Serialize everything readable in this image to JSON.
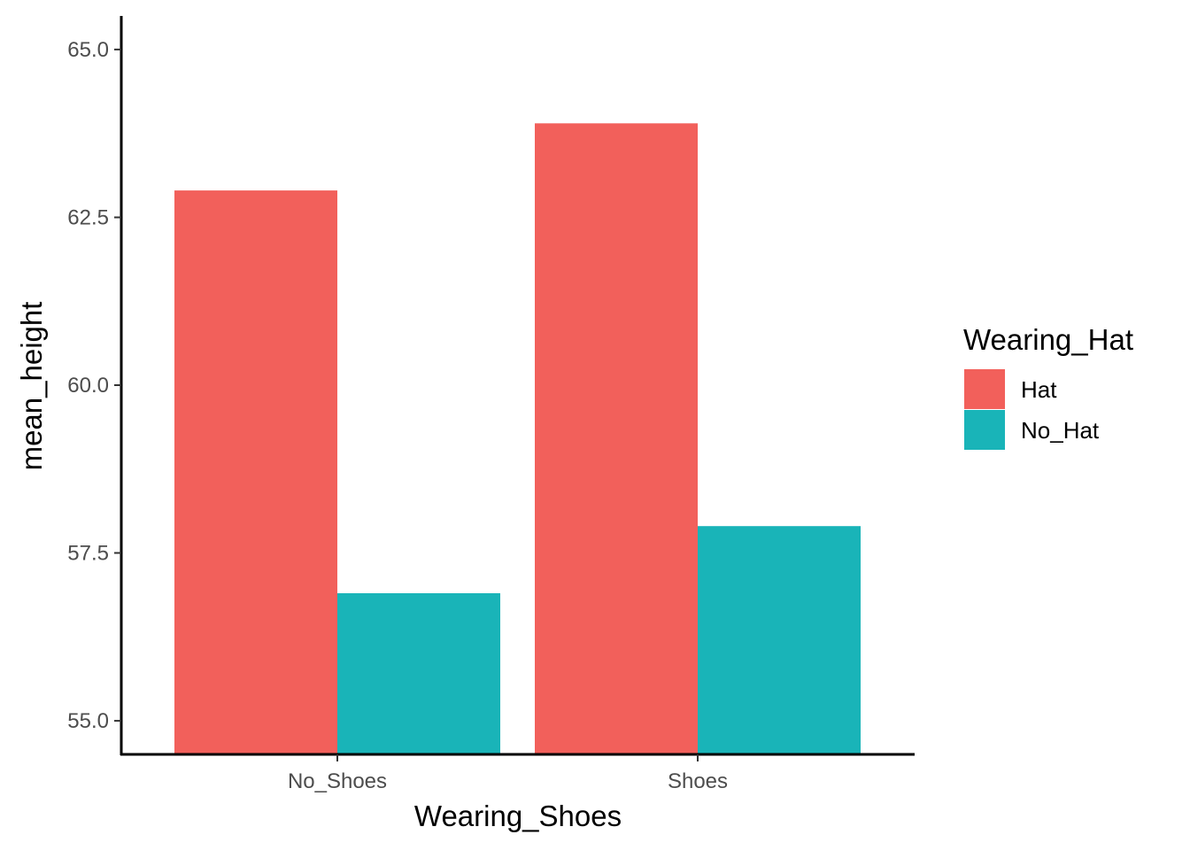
{
  "chart_data": {
    "type": "bar",
    "xlabel": "Wearing_Shoes",
    "ylabel": "mean_height",
    "categories": [
      "No_Shoes",
      "Shoes"
    ],
    "series": [
      {
        "name": "Hat",
        "values": [
          62.9,
          63.9
        ],
        "color": "#F2605B"
      },
      {
        "name": "No_Hat",
        "values": [
          56.9,
          57.9
        ],
        "color": "#19B4B8"
      }
    ],
    "ylim": [
      54.5,
      65.5
    ],
    "yticks": [
      55.0,
      57.5,
      60.0,
      62.5,
      65.0
    ],
    "ytick_labels": [
      "55.0",
      "57.5",
      "60.0",
      "62.5",
      "65.0"
    ],
    "grid": false,
    "legend": {
      "title": "Wearing_Hat",
      "placement": "right"
    }
  }
}
